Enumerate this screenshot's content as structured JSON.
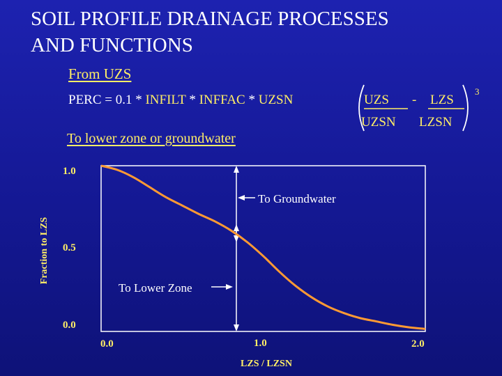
{
  "title_line1": "SOIL PROFILE DRAINAGE PROCESSES",
  "title_line2": "AND FUNCTIONS",
  "from_uzs": "From UZS",
  "equation": {
    "perc_prefix": "PERC = 0.1 * ",
    "infilt": "INFILT",
    "mult1": " * ",
    "inffac": "INFFAC",
    "mult2": " * ",
    "uzsn": "UZSN",
    "frac1_num": "UZS",
    "frac1_den": "UZSN",
    "minus": "-",
    "frac2_num": "LZS",
    "frac2_den": "LZSN",
    "exponent": "3"
  },
  "lower_zone_caption": "To lower zone or groundwater",
  "annotations": {
    "to_groundwater": "To Groundwater",
    "to_lower_zone": "To Lower Zone"
  },
  "colors": {
    "curve": "#ff9a33",
    "text_yellow": "#ffee66",
    "frame": "#ffffff"
  },
  "chart_data": {
    "type": "line",
    "xlabel": "LZS / LZSN",
    "ylabel": "Fraction to LZS",
    "xlim": [
      0,
      2
    ],
    "ylim": [
      0,
      1
    ],
    "x_ticks": [
      "0.0",
      "1.0",
      "2.0"
    ],
    "y_ticks": [
      "1.0",
      "0.5",
      "0.0"
    ],
    "series": [
      {
        "x": [
          0.0,
          0.1,
          0.2,
          0.3,
          0.4,
          0.5,
          0.6,
          0.7,
          0.8,
          0.9,
          1.0,
          1.1,
          1.2,
          1.3,
          1.4,
          1.5,
          1.6,
          1.7,
          1.8,
          1.9,
          2.0
        ],
        "values": [
          1.0,
          0.975,
          0.93,
          0.87,
          0.81,
          0.76,
          0.71,
          0.665,
          0.61,
          0.54,
          0.455,
          0.36,
          0.275,
          0.205,
          0.15,
          0.11,
          0.08,
          0.06,
          0.04,
          0.025,
          0.015
        ]
      }
    ]
  }
}
